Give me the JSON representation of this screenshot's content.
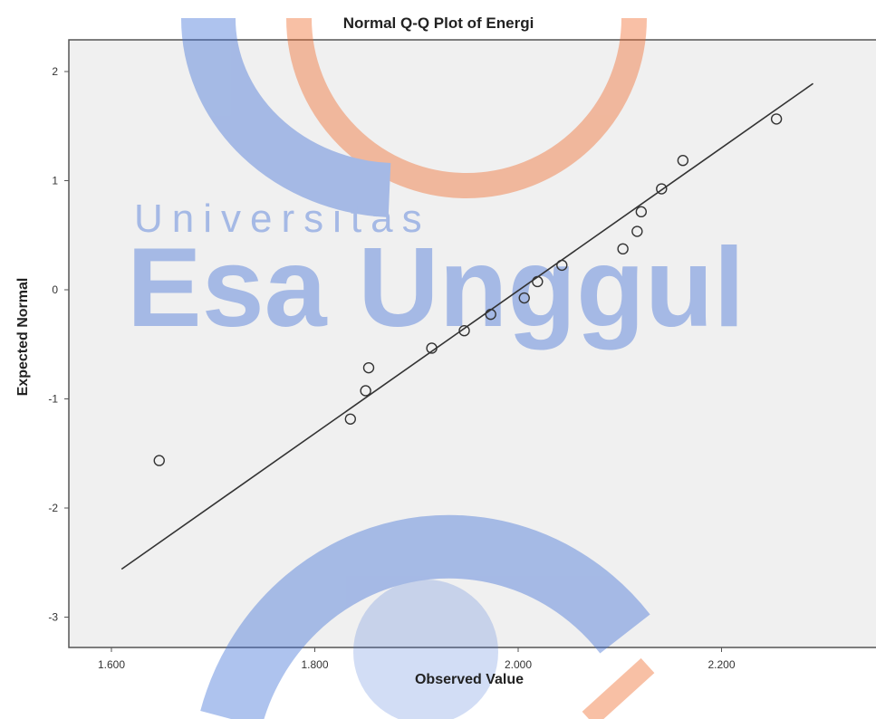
{
  "chart_data": {
    "type": "scatter",
    "title": "Normal Q-Q Plot of Energi",
    "xlabel": "Observed Value",
    "ylabel": "Expected Normal",
    "xlim": [
      1.57,
      2.35
    ],
    "ylim": [
      -3.3,
      2.3
    ],
    "x_ticks": [
      1.6,
      1.8,
      2.0,
      2.2
    ],
    "x_tick_labels": [
      "1.600",
      "1.800",
      "2.000",
      "2.200"
    ],
    "y_ticks": [
      2,
      1,
      0,
      -1,
      -2,
      -3
    ],
    "y_tick_labels": [
      "2",
      "1",
      "0",
      "-1",
      "-2",
      "-3"
    ],
    "points": [
      {
        "x": 1.647,
        "y": -1.565
      },
      {
        "x": 1.835,
        "y": -1.185
      },
      {
        "x": 1.85,
        "y": -0.925
      },
      {
        "x": 1.853,
        "y": -0.715
      },
      {
        "x": 1.915,
        "y": -0.535
      },
      {
        "x": 1.947,
        "y": -0.375
      },
      {
        "x": 1.973,
        "y": -0.225
      },
      {
        "x": 2.006,
        "y": -0.075
      },
      {
        "x": 2.019,
        "y": 0.075
      },
      {
        "x": 2.043,
        "y": 0.225
      },
      {
        "x": 2.103,
        "y": 0.375
      },
      {
        "x": 2.117,
        "y": 0.535
      },
      {
        "x": 2.121,
        "y": 0.715
      },
      {
        "x": 2.141,
        "y": 0.925
      },
      {
        "x": 2.162,
        "y": 1.185
      },
      {
        "x": 2.254,
        "y": 1.565
      }
    ],
    "reference_line": {
      "x": [
        1.61,
        2.29
      ],
      "y": [
        -2.56,
        1.89
      ]
    },
    "grid": false,
    "background_color": "#f0f0f0",
    "marker": "open-circle",
    "point_color": "#333333",
    "line_color": "#333333"
  },
  "watermark": {
    "line1": "Universitas",
    "line2": "Esa Unggul",
    "blue": "#3f6fd6",
    "orange": "#f06a2a"
  }
}
